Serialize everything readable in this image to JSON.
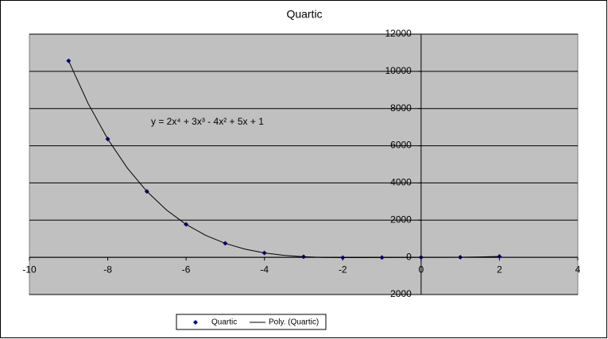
{
  "chart_data": {
    "type": "scatter",
    "title": "Quartic",
    "annotation": "y = 2x⁴ + 3x³ - 4x² + 5x + 1",
    "series": [
      {
        "name": "Quartic",
        "color": "#000080",
        "x": [
          -9,
          -8,
          -7,
          -6,
          -5,
          -4,
          -3,
          -2,
          -1,
          0,
          1,
          2
        ],
        "values": [
          10567,
          6361,
          3543,
          1771,
          751,
          237,
          31,
          -17,
          -9,
          1,
          7,
          51
        ]
      },
      {
        "name": "Poly. (Quartic)",
        "color": "#000000",
        "trendline": true,
        "x": [
          -9,
          -8.5,
          -8,
          -7.5,
          -7,
          -6.5,
          -6,
          -5.5,
          -5,
          -4.5,
          -4,
          -3.5,
          -3,
          -2.5,
          -2,
          -1.5,
          -1,
          -0.5,
          0,
          0.5,
          1,
          1.5,
          2
        ],
        "values": [
          10567,
          8267.25,
          6361,
          4801,
          3543,
          2545.75,
          1771,
          1183.5,
          751,
          444.25,
          237,
          106,
          31,
          -5.25,
          -17,
          -15.5,
          -9,
          -2.75,
          1,
          3,
          7,
          19.75,
          51
        ]
      }
    ],
    "xlim": [
      -10,
      4
    ],
    "xticks": [
      -10,
      -8,
      -6,
      -4,
      -2,
      0,
      2,
      4
    ],
    "ylim": [
      -2000,
      12000
    ],
    "yticks": [
      -2000,
      0,
      2000,
      4000,
      6000,
      8000,
      10000,
      12000
    ],
    "grid": true,
    "legend": "bottom"
  }
}
